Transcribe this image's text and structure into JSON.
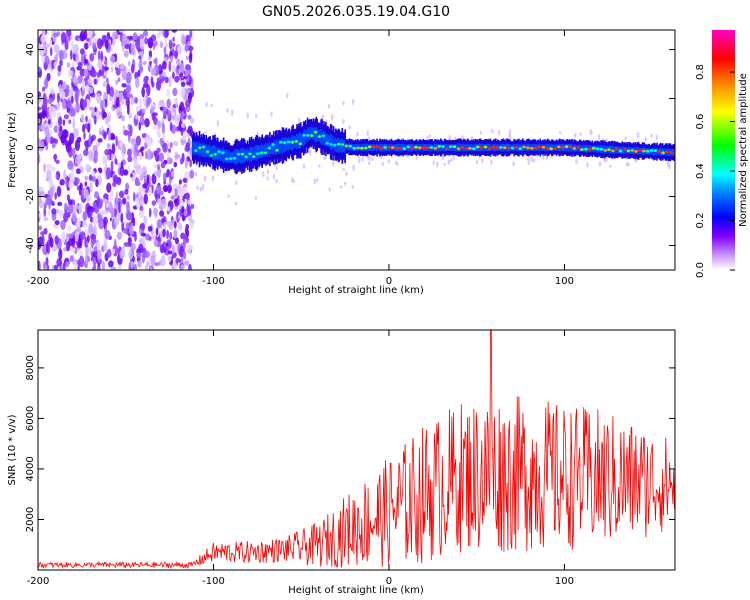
{
  "title": "GN05.2026.035.19.04.G10",
  "chart_data": [
    {
      "type": "heatmap",
      "title": "GN05.2026.035.19.04.G10",
      "xlabel": "Height of straight line (km)",
      "ylabel": "Frequency (Hz)",
      "xlim": [
        -200,
        163
      ],
      "ylim": [
        -50,
        48
      ],
      "xticks": [
        -200,
        -100,
        0,
        100
      ],
      "yticks": [
        -40,
        -20,
        0,
        20,
        40
      ],
      "noise_region": [
        -200,
        -112
      ],
      "signal_track": {
        "x": [
          -112,
          -100,
          -90,
          -80,
          -70,
          -60,
          -50,
          -45,
          -40,
          -35,
          -30,
          -20,
          0,
          50,
          100,
          163
        ],
        "freq": [
          0,
          -2,
          -4,
          -3,
          -1,
          1,
          3,
          6,
          5,
          3,
          1,
          0,
          0,
          0,
          0,
          -2
        ]
      },
      "colorbar": {
        "label": "Normalized spectral amplitude",
        "range": [
          0,
          0.97
        ],
        "ticks": [
          "0.0",
          "0.2",
          "0.4",
          "0.6",
          "0.8"
        ],
        "colors": [
          "#ffffff",
          "#cc99ff",
          "#8000ff",
          "#0000ff",
          "#00ffff",
          "#00ff00",
          "#ffff00",
          "#ff8000",
          "#ff0000",
          "#ff00c0"
        ]
      }
    },
    {
      "type": "line",
      "xlabel": "Height of straight line (km)",
      "ylabel": "SNR (10 * v/v)",
      "xlim": [
        -200,
        163
      ],
      "ylim": [
        0,
        9500
      ],
      "xticks": [
        -200,
        -100,
        0,
        100
      ],
      "yticks": [
        2000,
        4000,
        6000,
        8000
      ],
      "color": "#ff0000",
      "envelope": {
        "x": [
          -200,
          -112,
          -100,
          -80,
          -60,
          -40,
          -20,
          0,
          20,
          40,
          60,
          80,
          100,
          120,
          140,
          163
        ],
        "mean": [
          200,
          200,
          700,
          700,
          800,
          1000,
          1700,
          2300,
          3000,
          3700,
          3800,
          3800,
          3700,
          3600,
          3500,
          3400
        ],
        "amp": [
          100,
          120,
          400,
          450,
          500,
          900,
          1600,
          2200,
          2800,
          3000,
          3200,
          3100,
          2900,
          2800,
          2400,
          1800
        ]
      },
      "peak": {
        "x": 58,
        "y": 9500
      }
    }
  ]
}
